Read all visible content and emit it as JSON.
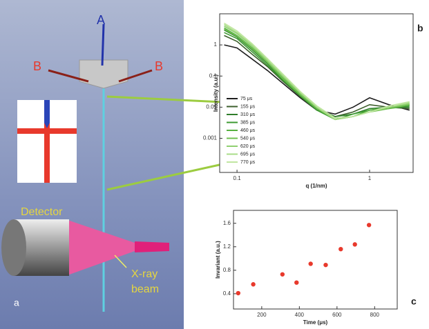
{
  "figure": {
    "arrow_A": "A",
    "arrow_B_left": "B",
    "arrow_B_right": "B",
    "detector": "Detector",
    "beam": [
      "X-ray",
      "beam"
    ],
    "panel_a": "a",
    "panel_b": "b",
    "panel_c": "c"
  },
  "chart_data": [
    {
      "type": "line",
      "x_label": "q (1/nm)",
      "y_label": "Intensity (a.u.)",
      "xscale": "log",
      "yscale": "log",
      "legend": "left",
      "x": [
        0.08,
        0.1,
        0.13,
        0.17,
        0.22,
        0.3,
        0.4,
        0.55,
        0.75,
        1,
        1.4,
        2
      ],
      "xlim": [
        0.074,
        2.13
      ],
      "ylim": [
        8e-05,
        10
      ],
      "xticks": [
        0.1,
        1
      ],
      "yticks": [
        0.001,
        0.01,
        0.1,
        1
      ],
      "series": [
        {
          "name": "75 μs",
          "color": "#1e1e1e",
          "values": [
            1,
            0.8,
            0.35,
            0.15,
            0.06,
            0.02,
            0.008,
            0.006,
            0.01,
            0.02,
            0.012,
            0.008
          ]
        },
        {
          "name": "155 μs",
          "color": "#3d5f2c",
          "values": [
            2,
            1.3,
            0.5,
            0.2,
            0.07,
            0.022,
            0.008,
            0.005,
            0.007,
            0.012,
            0.01,
            0.009
          ]
        },
        {
          "name": "310 μs",
          "color": "#2f7d2a",
          "values": [
            3,
            1.8,
            0.7,
            0.25,
            0.08,
            0.025,
            0.009,
            0.005,
            0.006,
            0.009,
            0.01,
            0.01
          ]
        },
        {
          "name": "385 μs",
          "color": "#3c9a30",
          "values": [
            2.5,
            1.6,
            0.6,
            0.22,
            0.075,
            0.023,
            0.008,
            0.004,
            0.006,
            0.008,
            0.009,
            0.011
          ]
        },
        {
          "name": "460 μs",
          "color": "#56b040",
          "values": [
            3.5,
            2,
            0.8,
            0.28,
            0.09,
            0.026,
            0.009,
            0.004,
            0.005,
            0.008,
            0.01,
            0.012
          ]
        },
        {
          "name": "540 μs",
          "color": "#6fc050",
          "values": [
            3.2,
            1.9,
            0.75,
            0.27,
            0.085,
            0.025,
            0.009,
            0.004,
            0.005,
            0.007,
            0.009,
            0.012
          ]
        },
        {
          "name": "620 μs",
          "color": "#8fd070",
          "values": [
            4,
            2.3,
            0.9,
            0.3,
            0.1,
            0.028,
            0.01,
            0.004,
            0.005,
            0.007,
            0.01,
            0.013
          ]
        },
        {
          "name": "695 μs",
          "color": "#a8dc88",
          "values": [
            4.5,
            2.5,
            1,
            0.33,
            0.11,
            0.03,
            0.01,
            0.004,
            0.005,
            0.007,
            0.01,
            0.014
          ]
        },
        {
          "name": "770 μs",
          "color": "#c0e6a0",
          "values": [
            5,
            2.8,
            1.1,
            0.36,
            0.12,
            0.032,
            0.011,
            0.0045,
            0.005,
            0.007,
            0.011,
            0.015
          ]
        }
      ]
    },
    {
      "type": "scatter",
      "x_label": "Time (μs)",
      "y_label": "Invariant (a.u.)",
      "color": "#e8392c",
      "x": [
        75,
        155,
        310,
        385,
        460,
        540,
        620,
        695,
        770
      ],
      "values": [
        0.41,
        0.56,
        0.73,
        0.59,
        0.91,
        0.89,
        1.16,
        1.24,
        1.57
      ],
      "xlim": [
        50,
        920
      ],
      "ylim": [
        0.14,
        1.82
      ],
      "xticks": [
        200,
        400,
        600,
        800
      ],
      "yticks": [
        0.4,
        0.8,
        1.2,
        1.6
      ]
    }
  ]
}
